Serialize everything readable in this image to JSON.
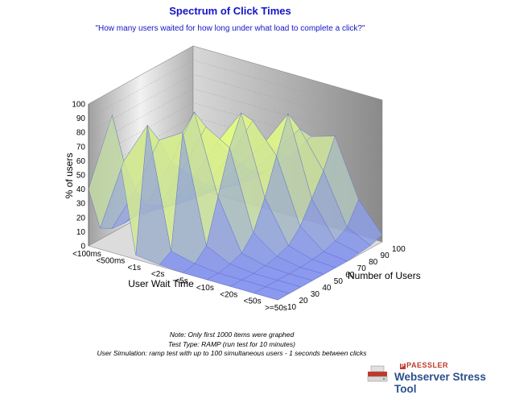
{
  "header": {
    "title": "Spectrum of Click Times",
    "subtitle": "\"How many users waited for how long under what load to complete a click?\""
  },
  "notes": {
    "line1": "Note: Only first 1000 items were graphed",
    "line2": "Test Type: RAMP (run test for 10 minutes)",
    "line3": "User Simulation: ramp test with up to 100 simultaneous users - 1 seconds between clicks"
  },
  "brand": {
    "company": "PAESSLER",
    "product": "Webserver Stress Tool"
  },
  "colors": {
    "title": "#1414c8",
    "surface_high": "#e8ff7a",
    "surface_low": "#7f8ff0",
    "brand": "#2a4f8e"
  },
  "chart_data": {
    "type": "3d-surface",
    "zlabel": "% of users",
    "xlabel": "User Wait Time",
    "ylabel": "Number of Users",
    "z_ticks": [
      "0",
      "10",
      "20",
      "30",
      "40",
      "50",
      "60",
      "70",
      "80",
      "90",
      "100"
    ],
    "zlim": [
      0,
      100
    ],
    "wait_time_categories": [
      "<100ms",
      "<500ms",
      "<1s",
      "<2s",
      "<5s",
      "<10s",
      "<20s",
      "<50s",
      ">=50s"
    ],
    "user_ticks": [
      "10",
      "20",
      "30",
      "40",
      "50",
      "60",
      "70",
      "80",
      "90",
      "100"
    ],
    "series": [
      {
        "values": [
          40,
          97,
          3,
          1,
          0,
          0,
          0,
          0,
          0
        ]
      },
      {
        "values": [
          8,
          60,
          90,
          6,
          2,
          0,
          0,
          0,
          0
        ]
      },
      {
        "values": [
          3,
          35,
          75,
          85,
          10,
          2,
          0,
          0,
          0
        ]
      },
      {
        "values": [
          2,
          20,
          55,
          95,
          40,
          5,
          1,
          0,
          0
        ]
      },
      {
        "values": [
          2,
          15,
          45,
          80,
          70,
          15,
          3,
          0,
          0
        ]
      },
      {
        "values": [
          1,
          10,
          35,
          65,
          90,
          35,
          6,
          1,
          0
        ]
      },
      {
        "values": [
          1,
          8,
          25,
          50,
          80,
          60,
          15,
          2,
          0
        ]
      },
      {
        "values": [
          1,
          6,
          20,
          40,
          60,
          85,
          30,
          5,
          1
        ]
      },
      {
        "values": [
          1,
          5,
          15,
          30,
          50,
          70,
          45,
          10,
          2
        ]
      },
      {
        "values": [
          0,
          4,
          12,
          25,
          40,
          60,
          65,
          25,
          5
        ]
      }
    ],
    "grid": true
  }
}
